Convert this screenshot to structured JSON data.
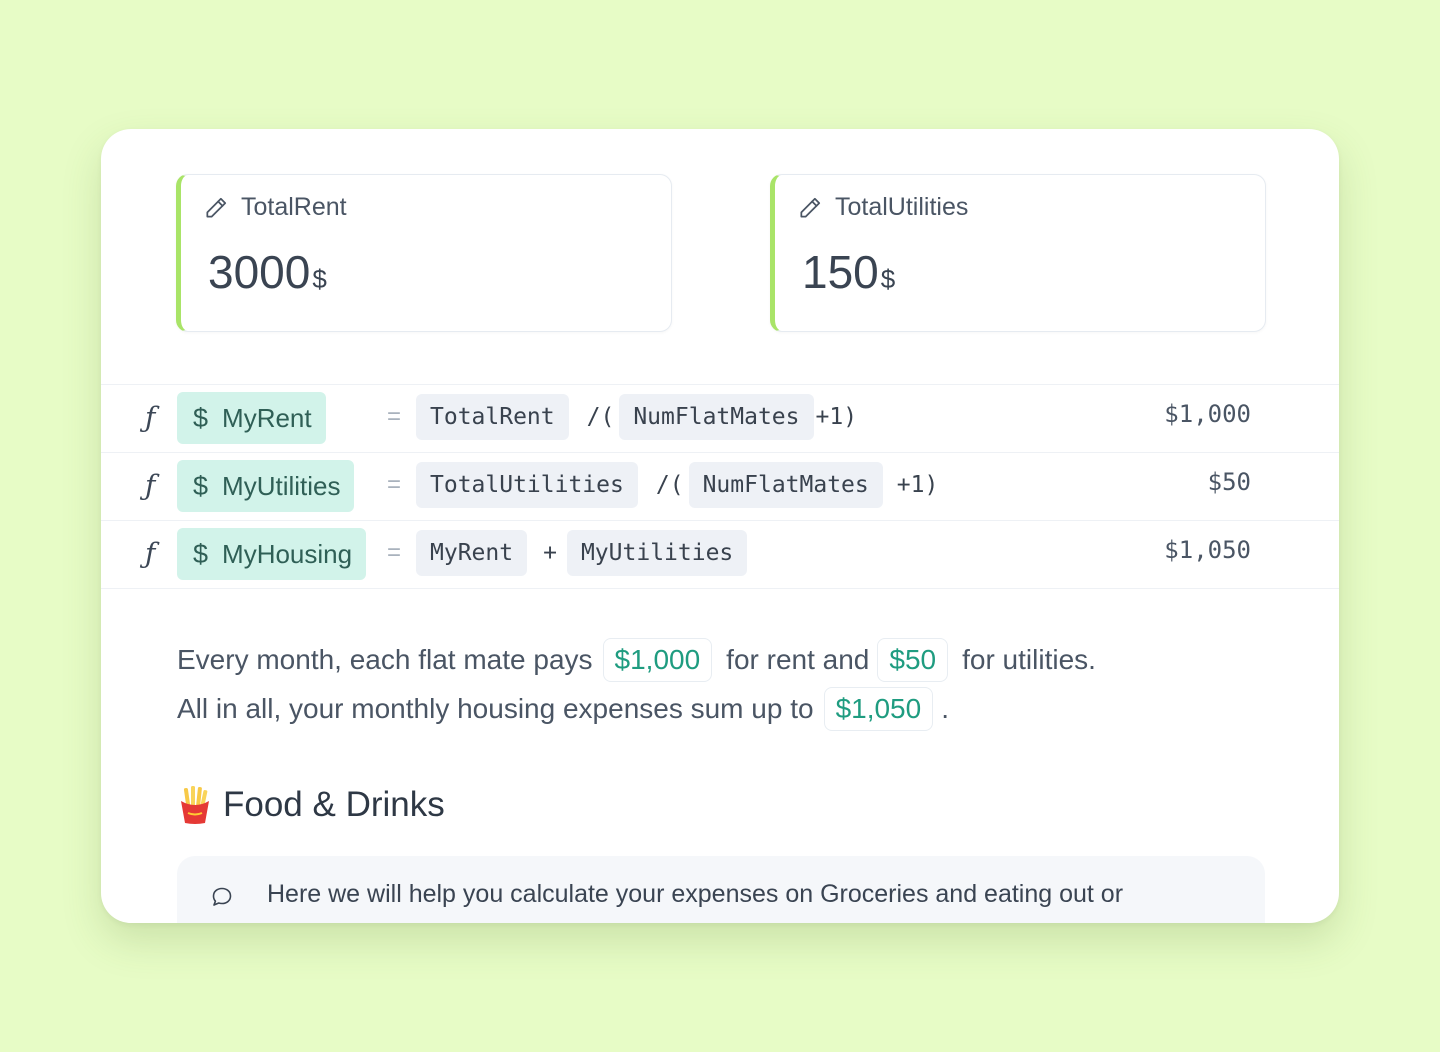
{
  "inputs": [
    {
      "label": "TotalRent",
      "value": "3000",
      "unit": "$"
    },
    {
      "label": "TotalUtilities",
      "value": "150",
      "unit": "$"
    }
  ],
  "formulas": [
    {
      "f_symbol": "ƒ",
      "currency": "$",
      "name": "MyRent",
      "eq": "=",
      "tokens": [
        {
          "type": "ref",
          "text": "TotalRent"
        },
        {
          "type": "op",
          "text": "/("
        },
        {
          "type": "ref",
          "text": "NumFlatMates"
        },
        {
          "type": "op",
          "text": "+1)"
        }
      ],
      "result": "$1,000"
    },
    {
      "f_symbol": "ƒ",
      "currency": "$",
      "name": "MyUtilities",
      "eq": "=",
      "tokens": [
        {
          "type": "ref",
          "text": "TotalUtilities"
        },
        {
          "type": "op",
          "text": "/("
        },
        {
          "type": "ref",
          "text": "NumFlatMates"
        },
        {
          "type": "op",
          "text": "+1)"
        }
      ],
      "result": "$50"
    },
    {
      "f_symbol": "ƒ",
      "currency": "$",
      "name": "MyHousing",
      "eq": "=",
      "tokens": [
        {
          "type": "ref",
          "text": "MyRent"
        },
        {
          "type": "op",
          "text": "+"
        },
        {
          "type": "ref",
          "text": "MyUtilities"
        }
      ],
      "result": "$1,050"
    }
  ],
  "summary": {
    "line1": {
      "prefix": "Every month, each flat mate pays",
      "rent_value": "$1,000",
      "middle": "for rent and",
      "util_value": "$50",
      "suffix": "for utilities."
    },
    "line2": {
      "prefix": "All in all, your monthly housing expenses sum up to",
      "total_value": "$1,050",
      "suffix": "."
    }
  },
  "section": {
    "icon": "fries-icon",
    "title": "Food & Drinks"
  },
  "comment": {
    "icon": "comment-bubble-icon",
    "text": "Here we will help you calculate your expenses on Groceries and eating out or"
  },
  "colors": {
    "background": "#e7fcc6",
    "accent_green": "#a9e468",
    "var_pill": "#d2f3ea",
    "value_teal": "#1f9c80"
  }
}
